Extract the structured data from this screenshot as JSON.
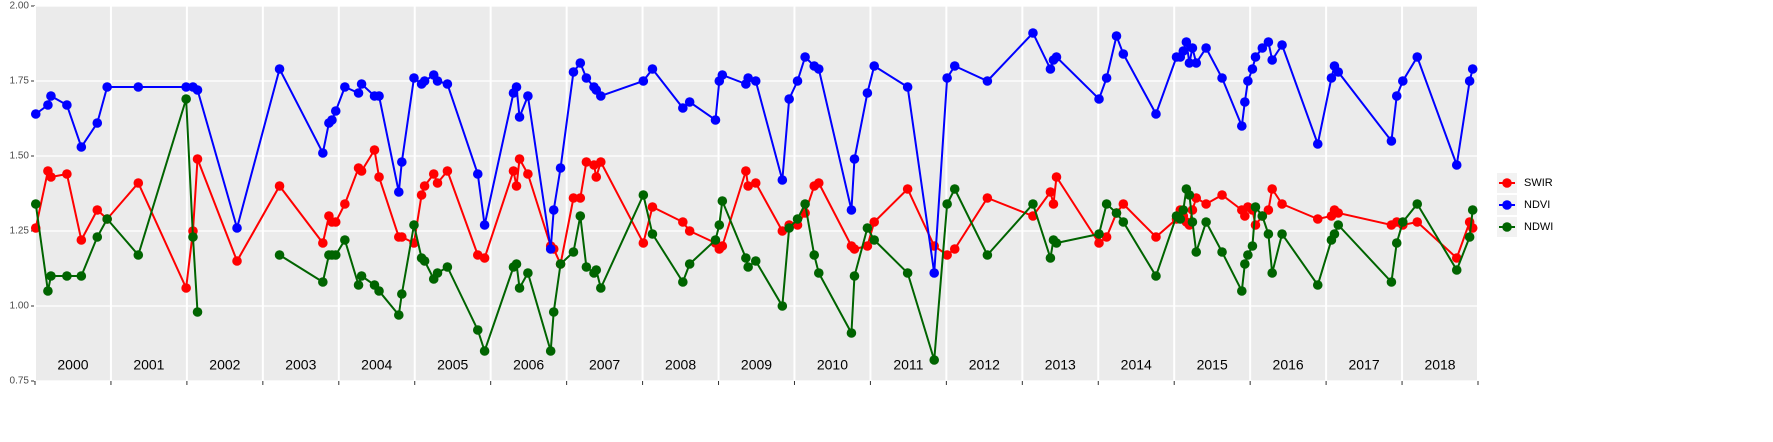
{
  "chart_data": {
    "type": "line",
    "x": [
      2000.01,
      2000.17,
      2000.21,
      2000.42,
      2000.61,
      2000.82,
      2000.95,
      2001.36,
      2001.99,
      2002.08,
      2002.14,
      2002.66,
      2003.22,
      2003.79,
      2003.87,
      2003.91,
      2003.96,
      2004.08,
      2004.26,
      2004.3,
      2004.47,
      2004.53,
      2004.79,
      2004.83,
      2004.99,
      2005.09,
      2005.13,
      2005.25,
      2005.3,
      2005.43,
      2005.83,
      2005.92,
      2006.3,
      2006.34,
      2006.38,
      2006.49,
      2006.79,
      2006.83,
      2006.92,
      2007.09,
      2007.18,
      2007.26,
      2007.36,
      2007.39,
      2007.45,
      2008.01,
      2008.13,
      2008.53,
      2008.62,
      2008.96,
      2009.01,
      2009.05,
      2009.36,
      2009.39,
      2009.49,
      2009.84,
      2009.93,
      2010.04,
      2010.14,
      2010.26,
      2010.32,
      2010.75,
      2010.79,
      2010.96,
      2011.05,
      2011.49,
      2011.84,
      2012.01,
      2012.11,
      2012.54,
      2013.14,
      2013.37,
      2013.41,
      2013.45,
      2014.01,
      2014.11,
      2014.24,
      2014.33,
      2014.76,
      2015.03,
      2015.08,
      2015.12,
      2015.16,
      2015.2,
      2015.24,
      2015.29,
      2015.42,
      2015.63,
      2015.89,
      2015.93,
      2015.97,
      2016.03,
      2016.07,
      2016.16,
      2016.24,
      2016.29,
      2016.42,
      2016.89,
      2017.07,
      2017.11,
      2017.16,
      2017.86,
      2017.93,
      2018.01,
      2018.2,
      2018.72,
      2018.89,
      2018.93
    ],
    "series": [
      {
        "name": "SWIR",
        "color": "#ff0000",
        "values": [
          1.26,
          1.45,
          1.43,
          1.44,
          1.22,
          1.32,
          1.29,
          1.41,
          1.06,
          1.25,
          1.49,
          1.15,
          1.4,
          1.21,
          1.3,
          1.28,
          1.28,
          1.34,
          1.46,
          1.45,
          1.52,
          1.43,
          1.23,
          1.23,
          1.21,
          1.37,
          1.4,
          1.44,
          1.41,
          1.45,
          1.17,
          1.16,
          1.45,
          1.4,
          1.49,
          1.44,
          1.2,
          1.19,
          1.14,
          1.36,
          1.36,
          1.48,
          1.47,
          1.43,
          1.48,
          1.21,
          1.33,
          1.28,
          1.25,
          1.21,
          1.19,
          1.2,
          1.45,
          1.4,
          1.41,
          1.25,
          1.27,
          1.27,
          1.31,
          1.4,
          1.41,
          1.2,
          1.19,
          1.2,
          1.28,
          1.39,
          1.2,
          1.17,
          1.19,
          1.36,
          1.3,
          1.38,
          1.34,
          1.43,
          1.21,
          1.23,
          1.31,
          1.34,
          1.23,
          1.29,
          1.32,
          1.3,
          1.28,
          1.27,
          1.32,
          1.36,
          1.34,
          1.37,
          1.32,
          1.3,
          1.33,
          1.32,
          1.27,
          1.3,
          1.32,
          1.39,
          1.34,
          1.29,
          1.3,
          1.32,
          1.31,
          1.27,
          1.28,
          1.27,
          1.28,
          1.16,
          1.28,
          1.26
        ]
      },
      {
        "name": "NDVI",
        "color": "#0000ff",
        "values": [
          1.64,
          1.67,
          1.7,
          1.67,
          1.53,
          1.61,
          1.73,
          1.73,
          1.73,
          1.73,
          1.72,
          1.26,
          1.79,
          1.51,
          1.61,
          1.62,
          1.65,
          1.73,
          1.71,
          1.74,
          1.7,
          1.7,
          1.38,
          1.48,
          1.76,
          1.74,
          1.75,
          1.77,
          1.75,
          1.74,
          1.44,
          1.27,
          1.71,
          1.73,
          1.63,
          1.7,
          1.19,
          1.32,
          1.46,
          1.78,
          1.81,
          1.76,
          1.73,
          1.72,
          1.7,
          1.75,
          1.79,
          1.66,
          1.68,
          1.62,
          1.75,
          1.77,
          1.74,
          1.76,
          1.75,
          1.42,
          1.69,
          1.75,
          1.83,
          1.8,
          1.79,
          1.32,
          1.49,
          1.71,
          1.8,
          1.73,
          1.11,
          1.76,
          1.8,
          1.75,
          1.91,
          1.79,
          1.82,
          1.83,
          1.69,
          1.76,
          1.9,
          1.84,
          1.64,
          1.83,
          1.83,
          1.85,
          1.88,
          1.81,
          1.86,
          1.81,
          1.86,
          1.76,
          1.6,
          1.68,
          1.75,
          1.79,
          1.83,
          1.86,
          1.88,
          1.82,
          1.87,
          1.54,
          1.76,
          1.8,
          1.78,
          1.55,
          1.7,
          1.75,
          1.83,
          1.47,
          1.75,
          1.79
        ]
      },
      {
        "name": "NDWI",
        "color": "#006400",
        "values": [
          1.34,
          1.05,
          1.1,
          1.1,
          1.1,
          1.23,
          1.29,
          1.17,
          1.69,
          1.23,
          0.98,
          null,
          1.17,
          1.08,
          1.17,
          1.17,
          1.17,
          1.22,
          1.07,
          1.1,
          1.07,
          1.05,
          0.97,
          1.04,
          1.27,
          1.16,
          1.15,
          1.09,
          1.11,
          1.13,
          0.92,
          0.85,
          1.13,
          1.14,
          1.06,
          1.11,
          0.85,
          0.98,
          1.14,
          1.18,
          1.3,
          1.13,
          1.11,
          1.12,
          1.06,
          1.37,
          1.24,
          1.08,
          1.14,
          1.22,
          1.27,
          1.35,
          1.16,
          1.13,
          1.15,
          1.0,
          1.26,
          1.29,
          1.34,
          1.17,
          1.11,
          0.91,
          1.1,
          1.26,
          1.22,
          1.11,
          0.82,
          1.34,
          1.39,
          1.17,
          1.34,
          1.16,
          1.22,
          1.21,
          1.24,
          1.34,
          1.31,
          1.28,
          1.1,
          1.3,
          1.29,
          1.32,
          1.39,
          1.37,
          1.28,
          1.18,
          1.28,
          1.18,
          1.05,
          1.14,
          1.17,
          1.2,
          1.33,
          1.3,
          1.24,
          1.11,
          1.24,
          1.07,
          1.22,
          1.24,
          1.27,
          1.08,
          1.21,
          1.28,
          1.34,
          1.12,
          1.23,
          1.32
        ]
      }
    ],
    "xlim": [
      2000,
      2019
    ],
    "xbreaks": [
      2000,
      2001,
      2002,
      2003,
      2004,
      2005,
      2006,
      2007,
      2008,
      2009,
      2010,
      2011,
      2012,
      2013,
      2014,
      2015,
      2016,
      2017,
      2018,
      2019
    ],
    "xticks": [
      {
        "value": 2000.5,
        "label": "2000"
      },
      {
        "value": 2001.5,
        "label": "2001"
      },
      {
        "value": 2002.5,
        "label": "2002"
      },
      {
        "value": 2003.5,
        "label": "2003"
      },
      {
        "value": 2004.5,
        "label": "2004"
      },
      {
        "value": 2005.5,
        "label": "2005"
      },
      {
        "value": 2006.5,
        "label": "2006"
      },
      {
        "value": 2007.5,
        "label": "2007"
      },
      {
        "value": 2008.5,
        "label": "2008"
      },
      {
        "value": 2009.5,
        "label": "2009"
      },
      {
        "value": 2010.5,
        "label": "2010"
      },
      {
        "value": 2011.5,
        "label": "2011"
      },
      {
        "value": 2012.5,
        "label": "2012"
      },
      {
        "value": 2013.5,
        "label": "2013"
      },
      {
        "value": 2014.5,
        "label": "2014"
      },
      {
        "value": 2015.5,
        "label": "2015"
      },
      {
        "value": 2016.5,
        "label": "2016"
      },
      {
        "value": 2017.5,
        "label": "2017"
      },
      {
        "value": 2018.5,
        "label": "2018"
      }
    ],
    "ylim": [
      0.75,
      2.0
    ],
    "yticks": [
      {
        "value": 0.75,
        "label": "0.75"
      },
      {
        "value": 1.0,
        "label": "1.00"
      },
      {
        "value": 1.25,
        "label": "1.25"
      },
      {
        "value": 1.5,
        "label": "1.50"
      },
      {
        "value": 1.75,
        "label": "1.75"
      },
      {
        "value": 2.0,
        "label": "2.00"
      }
    ],
    "grid": true,
    "legend": "right"
  }
}
